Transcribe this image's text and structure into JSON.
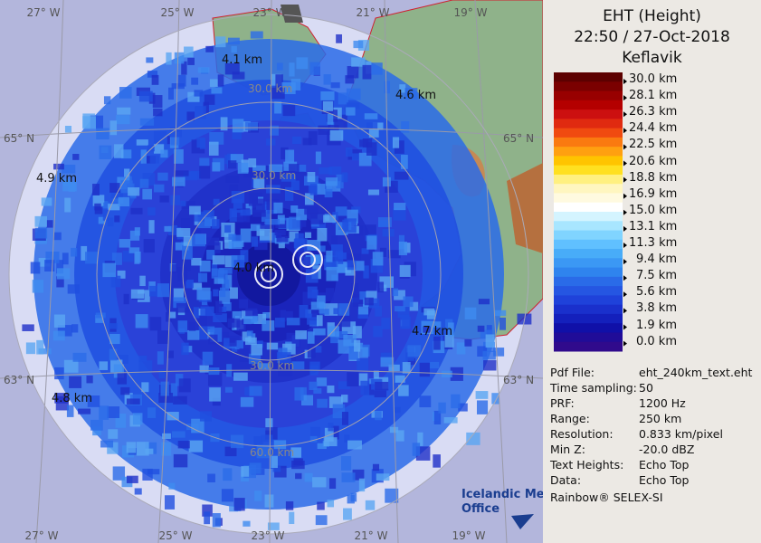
{
  "header": {
    "title_lines": [
      "EHT (Height)",
      "22:50 / 27-Oct-2018",
      "Keflavik"
    ]
  },
  "legend": {
    "labels": [
      "30.0 km",
      "28.1 km",
      "26.3 km",
      "24.4 km",
      "22.5 km",
      "20.6 km",
      "18.8 km",
      "16.9 km",
      "15.0 km",
      "13.1 km",
      "11.3 km",
      "9.4 km",
      "7.5 km",
      "5.6 km",
      "3.8 km",
      "1.9 km",
      "0.0 km"
    ]
  },
  "info": {
    "rows": [
      [
        "Pdf File:",
        "eht_240km_text.eht"
      ],
      [
        "Time sampling:",
        "50"
      ],
      [
        "PRF:",
        "1200 Hz"
      ],
      [
        "Range:",
        "250 km"
      ],
      [
        "Resolution:",
        "0.833 km/pixel"
      ],
      [
        "Min Z:",
        "-20.0 dBZ"
      ],
      [
        "Text Heights:",
        "Echo Top"
      ],
      [
        "Data:",
        "Echo Top"
      ]
    ],
    "footer": "Rainbow® SELEX-SI"
  },
  "map": {
    "longitudes_top": [
      "27° W",
      "25° W",
      "23° W",
      "21° W",
      "19° W"
    ],
    "longitudes_bottom": [
      "27° W",
      "25° W",
      "23° W",
      "21° W",
      "19° W"
    ],
    "latitudes": [
      "65° N",
      "65° N",
      "63° N",
      "63° N"
    ],
    "ring_labels": [
      "30.0 km",
      "30.0 km",
      "30.0 km",
      "60.0 km"
    ],
    "heights": [
      "4.1 km",
      "4.6 km",
      "4.9 km",
      "4.8 km",
      "4.7 km",
      "4.0 km"
    ],
    "logo": [
      "Icelandic Met",
      "Office"
    ]
  }
}
